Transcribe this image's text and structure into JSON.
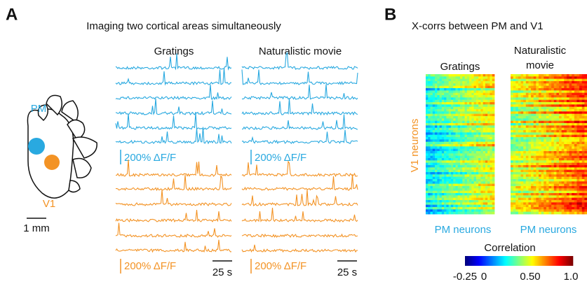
{
  "panel_a": {
    "label": "A",
    "title": "Imaging two cortical areas simultaneously",
    "conditions": [
      "Gratings",
      "Naturalistic movie"
    ],
    "areas": {
      "pm": "PM",
      "v1": "V1"
    },
    "map_scale": "1 mm",
    "amplitude_scale": "200% ΔF/F",
    "time_scale": "25 s"
  },
  "panel_b": {
    "label": "B",
    "title": "X-corrs between PM and V1",
    "conditions": [
      "Gratings",
      "Naturalistic",
      "movie"
    ],
    "y_label": "V1 neurons",
    "x_label": "PM neurons",
    "colorbar_title": "Correlation",
    "colorbar_ticks": [
      "-0.25",
      "0",
      "0.50",
      "1.0"
    ]
  }
}
